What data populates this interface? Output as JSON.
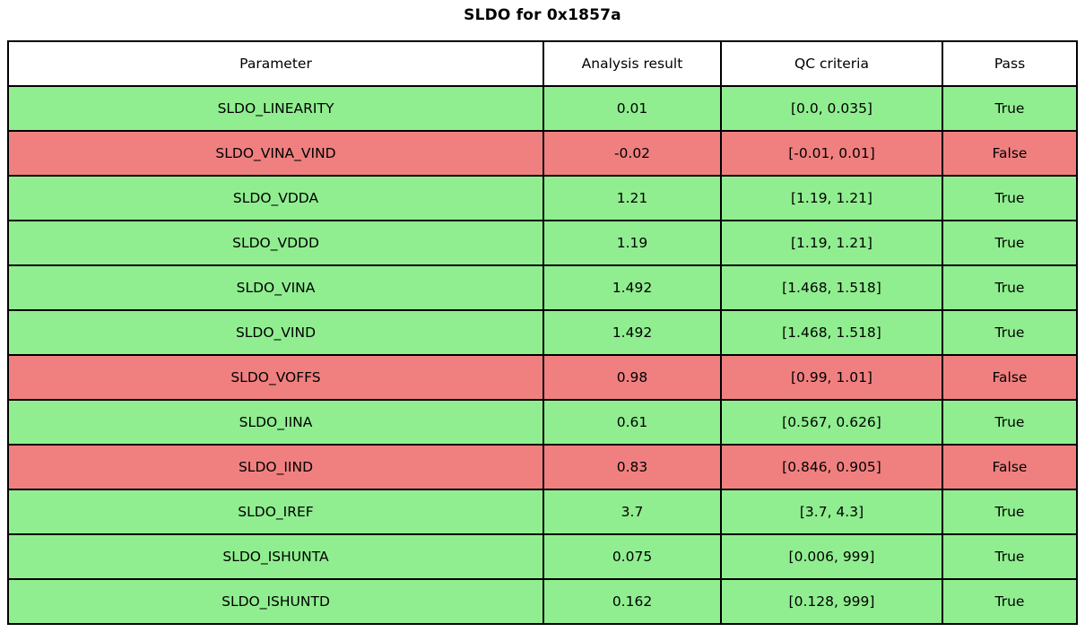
{
  "title": "SLDO for 0x1857a",
  "table": {
    "columns": {
      "parameter": "Parameter",
      "analysis_result": "Analysis result",
      "qc_criteria": "QC criteria",
      "pass": "Pass"
    },
    "rows": [
      {
        "parameter": "SLDO_LINEARITY",
        "analysis_result": "0.01",
        "qc_criteria": "[0.0, 0.035]",
        "pass": "True"
      },
      {
        "parameter": "SLDO_VINA_VIND",
        "analysis_result": "-0.02",
        "qc_criteria": "[-0.01, 0.01]",
        "pass": "False"
      },
      {
        "parameter": "SLDO_VDDA",
        "analysis_result": "1.21",
        "qc_criteria": "[1.19, 1.21]",
        "pass": "True"
      },
      {
        "parameter": "SLDO_VDDD",
        "analysis_result": "1.19",
        "qc_criteria": "[1.19, 1.21]",
        "pass": "True"
      },
      {
        "parameter": "SLDO_VINA",
        "analysis_result": "1.492",
        "qc_criteria": "[1.468, 1.518]",
        "pass": "True"
      },
      {
        "parameter": "SLDO_VIND",
        "analysis_result": "1.492",
        "qc_criteria": "[1.468, 1.518]",
        "pass": "True"
      },
      {
        "parameter": "SLDO_VOFFS",
        "analysis_result": "0.98",
        "qc_criteria": "[0.99, 1.01]",
        "pass": "False"
      },
      {
        "parameter": "SLDO_IINA",
        "analysis_result": "0.61",
        "qc_criteria": "[0.567, 0.626]",
        "pass": "True"
      },
      {
        "parameter": "SLDO_IIND",
        "analysis_result": "0.83",
        "qc_criteria": "[0.846, 0.905]",
        "pass": "False"
      },
      {
        "parameter": "SLDO_IREF",
        "analysis_result": "3.7",
        "qc_criteria": "[3.7, 4.3]",
        "pass": "True"
      },
      {
        "parameter": "SLDO_ISHUNTA",
        "analysis_result": "0.075",
        "qc_criteria": "[0.006, 999]",
        "pass": "True"
      },
      {
        "parameter": "SLDO_ISHUNTD",
        "analysis_result": "0.162",
        "qc_criteria": "[0.128, 999]",
        "pass": "True"
      }
    ]
  },
  "colors": {
    "pass_row_bg": "#90EE90",
    "fail_row_bg": "#F08080",
    "header_bg": "#FFFFFF",
    "border": "#000000",
    "text": "#000000"
  },
  "chart_data": {
    "type": "table",
    "title": "SLDO for 0x1857a",
    "columns": [
      "Parameter",
      "Analysis result",
      "QC criteria",
      "Pass"
    ],
    "rows": [
      {
        "parameter": "SLDO_LINEARITY",
        "analysis_result": 0.01,
        "qc_criteria_range": [
          0.0,
          0.035
        ],
        "pass": true
      },
      {
        "parameter": "SLDO_VINA_VIND",
        "analysis_result": -0.02,
        "qc_criteria_range": [
          -0.01,
          0.01
        ],
        "pass": false
      },
      {
        "parameter": "SLDO_VDDA",
        "analysis_result": 1.21,
        "qc_criteria_range": [
          1.19,
          1.21
        ],
        "pass": true
      },
      {
        "parameter": "SLDO_VDDD",
        "analysis_result": 1.19,
        "qc_criteria_range": [
          1.19,
          1.21
        ],
        "pass": true
      },
      {
        "parameter": "SLDO_VINA",
        "analysis_result": 1.492,
        "qc_criteria_range": [
          1.468,
          1.518
        ],
        "pass": true
      },
      {
        "parameter": "SLDO_VIND",
        "analysis_result": 1.492,
        "qc_criteria_range": [
          1.468,
          1.518
        ],
        "pass": true
      },
      {
        "parameter": "SLDO_VOFFS",
        "analysis_result": 0.98,
        "qc_criteria_range": [
          0.99,
          1.01
        ],
        "pass": false
      },
      {
        "parameter": "SLDO_IINA",
        "analysis_result": 0.61,
        "qc_criteria_range": [
          0.567,
          0.626
        ],
        "pass": true
      },
      {
        "parameter": "SLDO_IIND",
        "analysis_result": 0.83,
        "qc_criteria_range": [
          0.846,
          0.905
        ],
        "pass": false
      },
      {
        "parameter": "SLDO_IREF",
        "analysis_result": 3.7,
        "qc_criteria_range": [
          3.7,
          4.3
        ],
        "pass": true
      },
      {
        "parameter": "SLDO_ISHUNTA",
        "analysis_result": 0.075,
        "qc_criteria_range": [
          0.006,
          999
        ],
        "pass": true
      },
      {
        "parameter": "SLDO_ISHUNTD",
        "analysis_result": 0.162,
        "qc_criteria_range": [
          0.128,
          999
        ],
        "pass": true
      }
    ],
    "legend": "row background green = pass (True), red = fail (False)",
    "grid": true
  }
}
